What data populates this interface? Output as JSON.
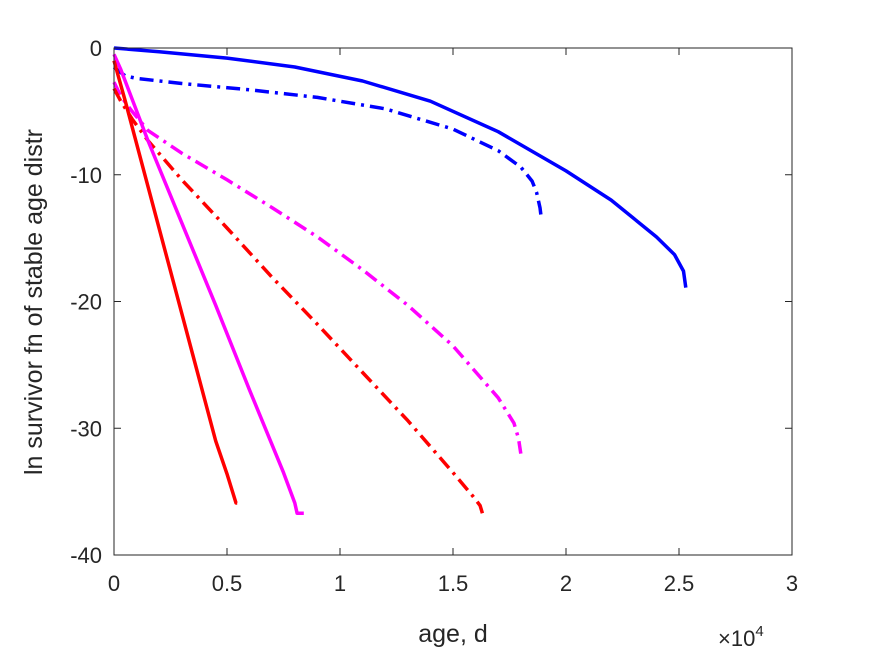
{
  "chart_data": {
    "type": "line",
    "title": "",
    "xlabel": "age, d",
    "ylabel": "ln survivor fn of stable age distr",
    "x_exponent_label": {
      "base": "×10",
      "exponent": "4"
    },
    "xlim": [
      0,
      30000
    ],
    "ylim": [
      -40,
      0
    ],
    "xticks": [
      0,
      5000,
      10000,
      15000,
      20000,
      25000,
      30000
    ],
    "xtick_labels": [
      "0",
      "0.5",
      "1",
      "1.5",
      "2",
      "2.5",
      "3"
    ],
    "yticks": [
      -40,
      -30,
      -20,
      -10,
      0
    ],
    "ytick_labels": [
      "-40",
      "-30",
      "-20",
      "-10",
      "0"
    ],
    "grid": false,
    "box": true,
    "series": [
      {
        "color": "#0000ff",
        "style": "solid",
        "x": [
          0,
          2000,
          5000,
          8000,
          11000,
          14000,
          17000,
          20000,
          22000,
          24000,
          24800,
          25200,
          25300
        ],
        "y": [
          0,
          -0.3,
          -0.8,
          -1.5,
          -2.6,
          -4.2,
          -6.6,
          -9.7,
          -12.0,
          -14.9,
          -16.3,
          -17.6,
          -18.9
        ]
      },
      {
        "color": "#0000ff",
        "style": "dashdot",
        "x": [
          0,
          200,
          500,
          1000,
          3000,
          6000,
          9000,
          12000,
          15000,
          17000,
          18000,
          18500,
          18700,
          18850,
          18900
        ],
        "y": [
          -1.5,
          -1.8,
          -2.2,
          -2.4,
          -2.8,
          -3.3,
          -3.9,
          -4.8,
          -6.4,
          -8.1,
          -9.4,
          -10.5,
          -11.4,
          -12.6,
          -13.3
        ]
      },
      {
        "color": "#ff00ff",
        "style": "dashdot",
        "x": [
          0,
          300,
          800,
          1500,
          3000,
          5000,
          7000,
          9000,
          11000,
          13000,
          15000,
          17000,
          17700,
          17900,
          18000
        ],
        "y": [
          -2.7,
          -3.8,
          -5.0,
          -6.5,
          -8.3,
          -10.4,
          -12.6,
          -14.9,
          -17.5,
          -20.3,
          -23.5,
          -27.6,
          -29.6,
          -30.8,
          -32.0
        ]
      },
      {
        "color": "#ff0000",
        "style": "dashdot",
        "x": [
          0,
          300,
          800,
          1500,
          3000,
          5000,
          7000,
          9000,
          11000,
          13000,
          15000,
          15900,
          16200,
          16300
        ],
        "y": [
          -3.2,
          -4.2,
          -5.6,
          -7.3,
          -10.4,
          -14.2,
          -18.1,
          -21.8,
          -25.6,
          -29.4,
          -33.5,
          -35.4,
          -36.1,
          -36.7
        ]
      },
      {
        "color": "#ff00ff",
        "style": "solid",
        "x": [
          0,
          300,
          1500,
          3000,
          4500,
          6000,
          7500,
          8000,
          8100,
          8300,
          8400
        ],
        "y": [
          -0.5,
          -1.7,
          -7.3,
          -13.8,
          -20.3,
          -27.0,
          -33.5,
          -35.9,
          -36.7,
          -36.7,
          -36.7
        ]
      },
      {
        "color": "#ff0000",
        "style": "solid",
        "x": [
          0,
          500,
          1500,
          2500,
          3500,
          4500,
          5000,
          5400,
          5450
        ],
        "y": [
          -1.0,
          -4.2,
          -10.9,
          -17.6,
          -24.3,
          -31.0,
          -33.6,
          -35.9,
          -35.9
        ]
      }
    ]
  }
}
